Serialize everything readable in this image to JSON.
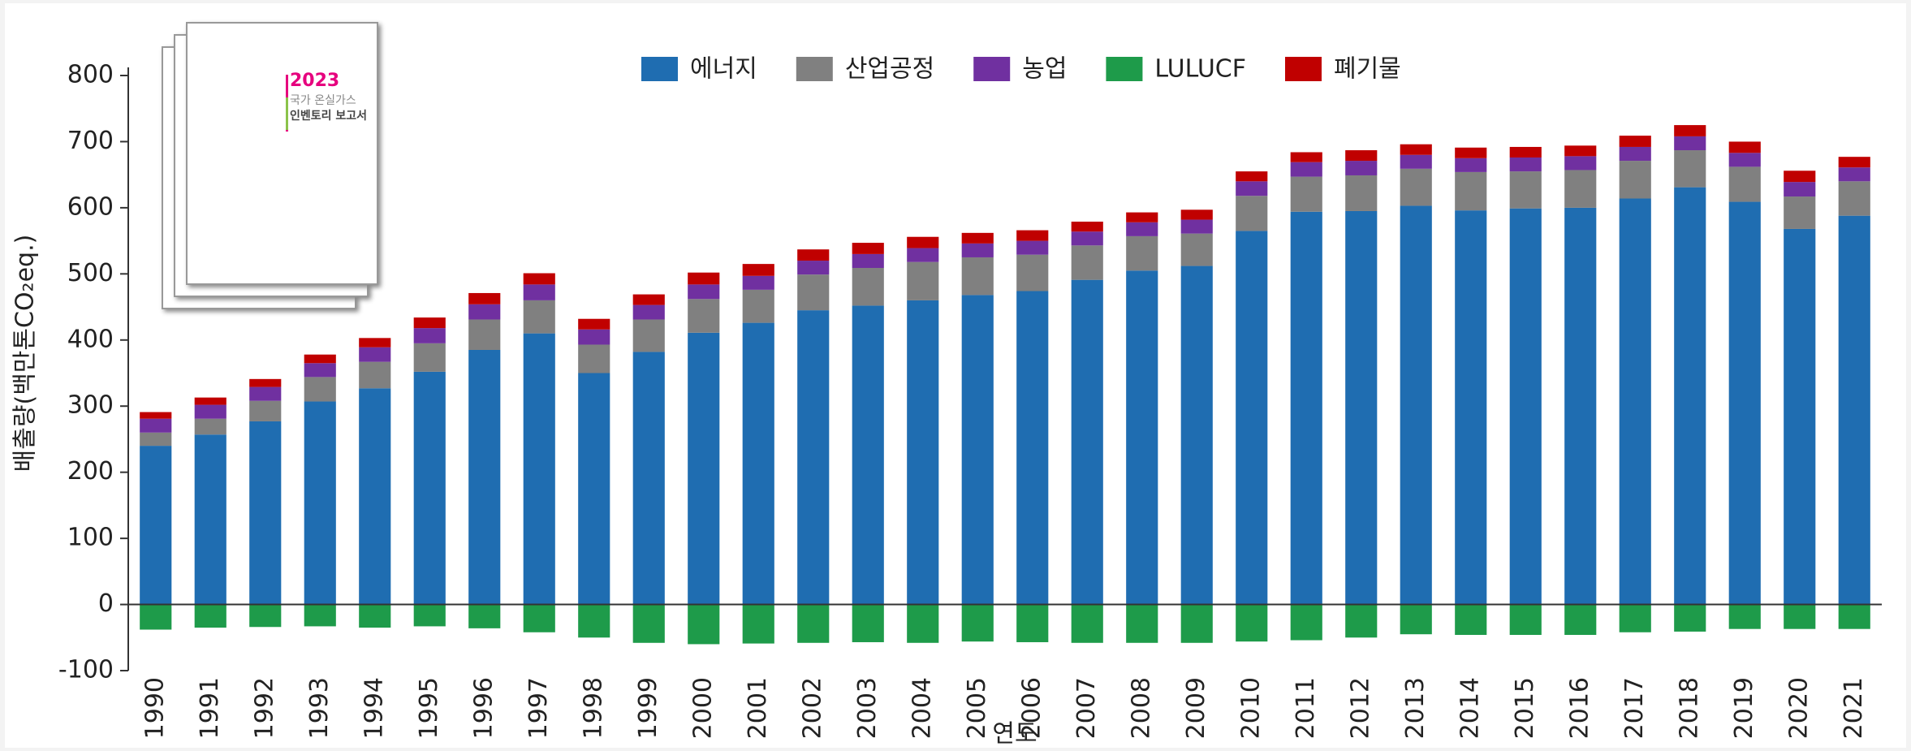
{
  "chart_data": {
    "type": "bar",
    "stacked": true,
    "x_label": "연도",
    "y_label": "배출량(백만톤CO₂eq.)",
    "categories": [
      "1990",
      "1991",
      "1992",
      "1993",
      "1994",
      "1995",
      "1996",
      "1997",
      "1998",
      "1999",
      "2000",
      "2001",
      "2002",
      "2003",
      "2004",
      "2005",
      "2006",
      "2007",
      "2008",
      "2009",
      "2010",
      "2011",
      "2012",
      "2013",
      "2014",
      "2015",
      "2016",
      "2017",
      "2018",
      "2019",
      "2020",
      "2021"
    ],
    "series": [
      {
        "name": "에너지",
        "color": "#1f6db1",
        "values": [
          240,
          257,
          277,
          307,
          327,
          352,
          385,
          410,
          350,
          382,
          411,
          426,
          445,
          452,
          460,
          468,
          474,
          491,
          505,
          512,
          565,
          594,
          595,
          603,
          596,
          599,
          600,
          614,
          631,
          609,
          568,
          588
        ]
      },
      {
        "name": "산업공정",
        "color": "#808080",
        "values": [
          20,
          24,
          31,
          37,
          40,
          43,
          46,
          50,
          43,
          49,
          51,
          50,
          54,
          57,
          58,
          57,
          55,
          52,
          52,
          49,
          53,
          53,
          54,
          56,
          58,
          56,
          57,
          57,
          56,
          53,
          49,
          52
        ]
      },
      {
        "name": "농업",
        "color": "#7030a0",
        "values": [
          21,
          21,
          21,
          21,
          22,
          23,
          23,
          24,
          23,
          22,
          22,
          21,
          21,
          21,
          21,
          21,
          21,
          21,
          21,
          21,
          22,
          22,
          22,
          21,
          21,
          21,
          21,
          21,
          21,
          21,
          22,
          21
        ]
      },
      {
        "name": "LULUCF",
        "color": "#1e9b4a",
        "values": [
          -38,
          -35,
          -34,
          -33,
          -35,
          -33,
          -36,
          -42,
          -50,
          -58,
          -60,
          -59,
          -58,
          -57,
          -58,
          -56,
          -57,
          -58,
          -58,
          -58,
          -56,
          -54,
          -50,
          -45,
          -46,
          -46,
          -46,
          -42,
          -41,
          -37,
          -37,
          -37
        ]
      },
      {
        "name": "폐기물",
        "color": "#c00000",
        "values": [
          10,
          11,
          12,
          13,
          14,
          16,
          17,
          17,
          16,
          16,
          18,
          18,
          17,
          17,
          17,
          16,
          16,
          15,
          15,
          15,
          15,
          15,
          16,
          16,
          16,
          16,
          16,
          17,
          17,
          17,
          17,
          16
        ]
      }
    ],
    "ylim": [
      -100,
      800
    ],
    "yticks": [
      -100,
      0,
      100,
      200,
      300,
      400,
      500,
      600,
      700,
      800
    ],
    "legend": "top",
    "annotations": [
      "2023",
      "국가 온실가스",
      "인벤토리 보고서"
    ]
  }
}
